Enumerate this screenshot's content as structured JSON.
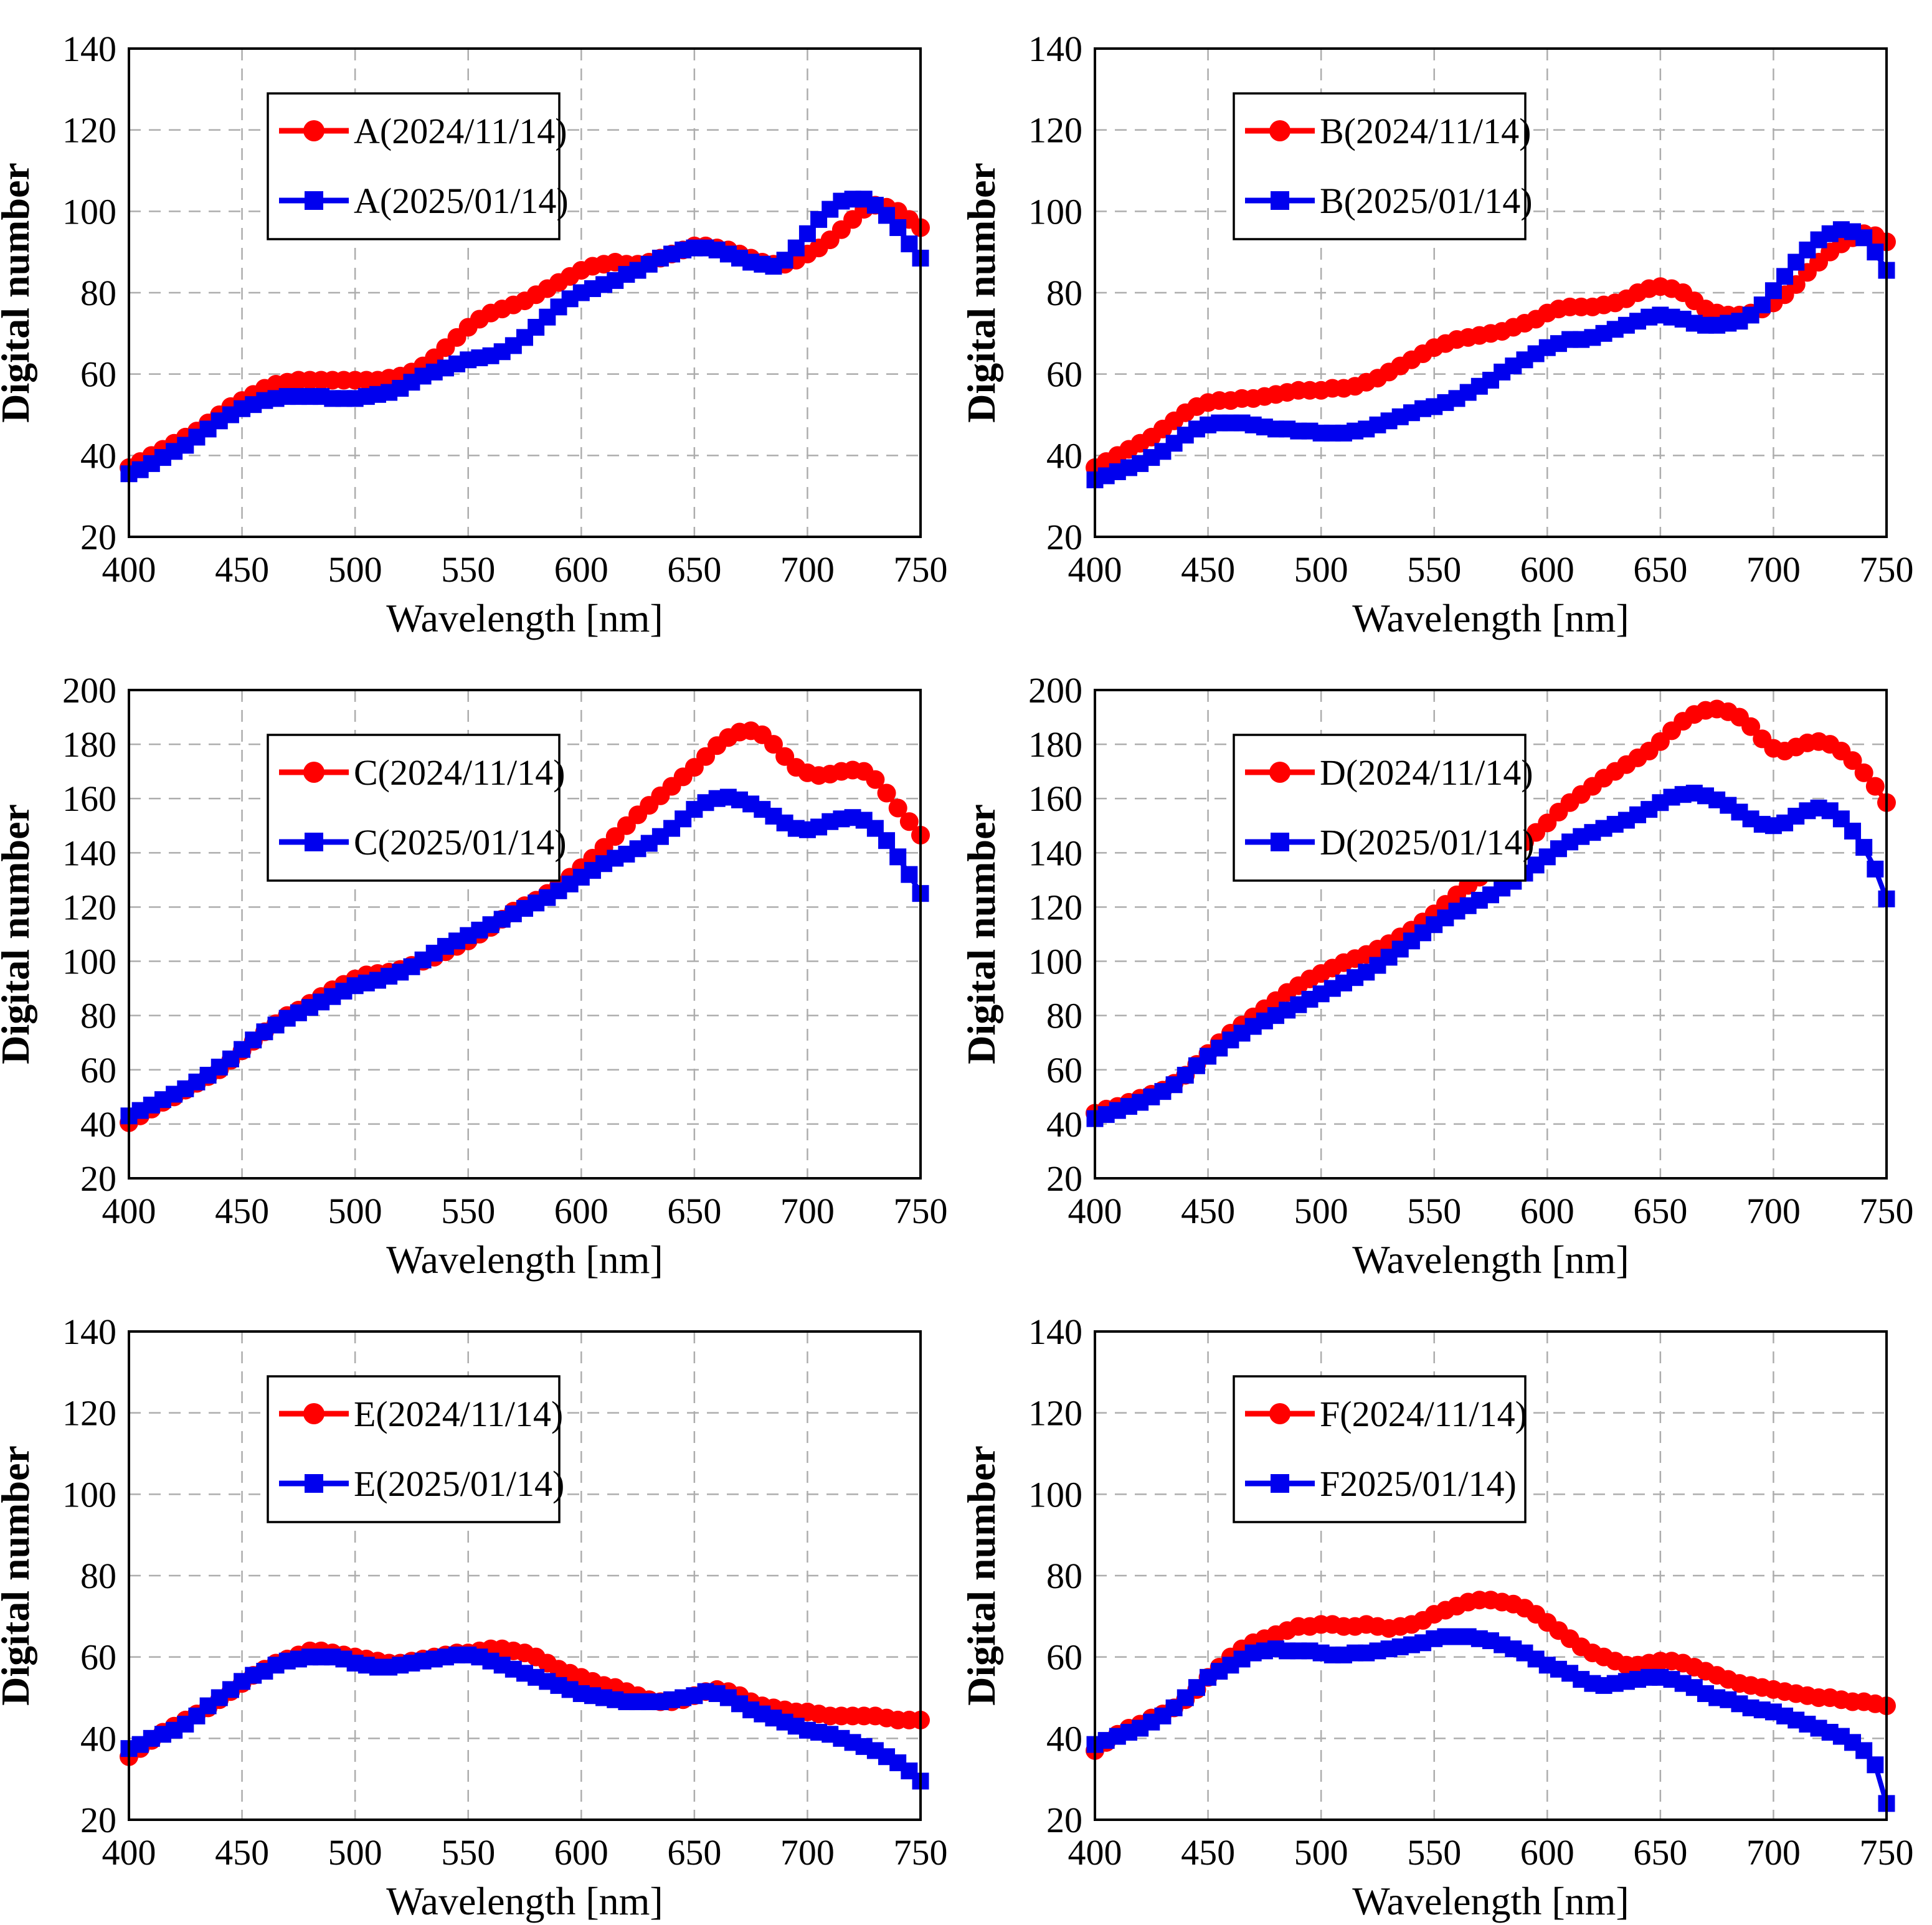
{
  "page": {
    "background": "#ffffff"
  },
  "style": {
    "series1_color": "#ff0000",
    "series2_color": "#0000ee",
    "grid_color": "#adadad",
    "axis_color": "#000000",
    "legend_bg": "#ffffff"
  },
  "chart_common": {
    "xlabel": "Wavelength [nm]",
    "ylabel": "Digital number",
    "x_ticks": [
      400,
      450,
      500,
      550,
      600,
      650,
      700,
      750
    ],
    "x_range": [
      400,
      750
    ],
    "grid": true,
    "legend_position": "upper-left-inset",
    "wavelengths_nm": [
      400,
      405,
      410,
      415,
      420,
      425,
      430,
      435,
      440,
      445,
      450,
      455,
      460,
      465,
      470,
      475,
      480,
      485,
      490,
      495,
      500,
      505,
      510,
      515,
      520,
      525,
      530,
      535,
      540,
      545,
      550,
      555,
      560,
      565,
      570,
      575,
      580,
      585,
      590,
      595,
      600,
      605,
      610,
      615,
      620,
      625,
      630,
      635,
      640,
      645,
      650,
      655,
      660,
      665,
      670,
      675,
      680,
      685,
      690,
      695,
      700,
      705,
      710,
      715,
      720,
      725,
      730,
      735,
      740,
      745,
      750
    ]
  },
  "chart_data": [
    {
      "id": "A",
      "type": "line",
      "ylim": [
        20,
        140
      ],
      "y_ticks": [
        20,
        40,
        60,
        80,
        100,
        120,
        140
      ],
      "series": [
        {
          "name": "A(2024/11/14)",
          "marker": "circle",
          "color": "#ff0000",
          "values": [
            37,
            38.5,
            40,
            41.5,
            43,
            44.5,
            46,
            48,
            50,
            52,
            53.5,
            55,
            56.5,
            57.5,
            58,
            58.5,
            58.5,
            58.5,
            58.5,
            58.5,
            58.5,
            58.5,
            58.5,
            59,
            59.5,
            60.5,
            62,
            64,
            66.5,
            69,
            71.5,
            73.5,
            75,
            76,
            77,
            78,
            79.5,
            81,
            82.5,
            84,
            85.5,
            86.5,
            87,
            87.5,
            87,
            87,
            87.5,
            88.5,
            89.5,
            90.5,
            91.5,
            91.5,
            91,
            90.5,
            89.5,
            88.5,
            87.5,
            87,
            87,
            88,
            89.5,
            91,
            93,
            95.5,
            98,
            100.5,
            101.5,
            101,
            100,
            98,
            96
          ]
        },
        {
          "name": "A(2025/01/14)",
          "marker": "square",
          "color": "#0000ee",
          "values": [
            35.5,
            36.5,
            38,
            39.5,
            41,
            42.5,
            44.5,
            46.5,
            48.5,
            50,
            51.5,
            52.5,
            53.5,
            54,
            54.5,
            54.5,
            54.5,
            54.5,
            54,
            54,
            54,
            54.5,
            55,
            55.5,
            56.5,
            58,
            59.5,
            60.5,
            61.5,
            62.5,
            63.5,
            64,
            64.5,
            65.5,
            67,
            69,
            71.5,
            74,
            76.5,
            78.5,
            80,
            81,
            82,
            83,
            84.5,
            85.5,
            87,
            88.5,
            89.5,
            90.5,
            91,
            91,
            90.5,
            89.5,
            88.5,
            87.5,
            87,
            86.5,
            88,
            91,
            94.5,
            98,
            100.5,
            102.5,
            103,
            103,
            101.5,
            99,
            96,
            92,
            88.5
          ]
        }
      ]
    },
    {
      "id": "B",
      "type": "line",
      "ylim": [
        20,
        140
      ],
      "y_ticks": [
        20,
        40,
        60,
        80,
        100,
        120,
        140
      ],
      "series": [
        {
          "name": "B(2024/11/14)",
          "marker": "circle",
          "color": "#ff0000",
          "values": [
            37,
            38.5,
            40,
            41.5,
            43,
            44.5,
            46.5,
            48.5,
            50.5,
            52,
            53,
            53.5,
            53.5,
            54,
            54,
            54.5,
            55,
            55.5,
            56,
            56,
            56,
            56.5,
            56.5,
            57,
            58,
            59,
            60.5,
            62,
            63.5,
            65,
            66.5,
            67.5,
            68.5,
            69,
            69.5,
            70,
            70.5,
            71.5,
            72.5,
            73.5,
            75,
            76,
            76.5,
            76.5,
            76.5,
            77,
            77.5,
            78.5,
            80,
            81,
            81.5,
            81,
            80,
            78,
            76,
            75,
            74.5,
            74.5,
            75,
            76,
            77.5,
            79.5,
            82,
            85,
            87.5,
            90,
            92,
            93.5,
            94.5,
            94,
            92.5
          ]
        },
        {
          "name": "B(2025/01/14)",
          "marker": "square",
          "color": "#0000ee",
          "values": [
            34,
            35,
            36,
            37,
            38,
            39.5,
            41,
            43,
            45,
            46.5,
            47.5,
            48,
            48,
            48,
            47.5,
            47,
            46.5,
            46.5,
            46,
            46,
            45.5,
            45.5,
            45.5,
            46,
            46.5,
            47.5,
            48.5,
            49.5,
            50.5,
            51.5,
            52,
            53,
            54,
            55.5,
            57,
            58.5,
            60.5,
            62,
            63.5,
            65,
            66.5,
            67.5,
            68.5,
            68.5,
            69,
            70,
            71,
            72,
            73,
            74,
            74.5,
            74,
            73.5,
            72.5,
            72,
            72,
            72.5,
            73,
            74.5,
            77,
            80.5,
            84,
            87.5,
            90.5,
            93,
            94.5,
            95.5,
            95,
            93.5,
            90,
            85.5
          ]
        }
      ]
    },
    {
      "id": "C",
      "type": "line",
      "ylim": [
        20,
        200
      ],
      "y_ticks": [
        20,
        40,
        60,
        80,
        100,
        120,
        140,
        160,
        180,
        200
      ],
      "series": [
        {
          "name": "C(2024/11/14)",
          "marker": "circle",
          "color": "#ff0000",
          "values": [
            40.5,
            43,
            45.5,
            48,
            50,
            52.5,
            55,
            57.5,
            60,
            63.5,
            67,
            70.5,
            74,
            77,
            80,
            82,
            84.5,
            87,
            89.5,
            91.5,
            93.5,
            95,
            95.5,
            96,
            97,
            98.5,
            100,
            101.5,
            103.5,
            105.5,
            107.5,
            110,
            112.5,
            115.5,
            118.5,
            120.5,
            122.5,
            125,
            128,
            131,
            134.5,
            138,
            142,
            146,
            150,
            154,
            157.5,
            161,
            164.5,
            168,
            171.5,
            175.5,
            179.5,
            182.5,
            184.5,
            185,
            183.5,
            180,
            175.5,
            171.5,
            169.5,
            168.5,
            169,
            170,
            170.5,
            170,
            167,
            162,
            156.5,
            151.5,
            146.5
          ]
        },
        {
          "name": "C(2025/01/14)",
          "marker": "square",
          "color": "#0000ee",
          "values": [
            43,
            45,
            47,
            49,
            51,
            53,
            55.5,
            58,
            61,
            64,
            67.5,
            71,
            74,
            76.5,
            79,
            81,
            83,
            85,
            87,
            89,
            91,
            92,
            93,
            94.5,
            96,
            98,
            100.5,
            103,
            105.5,
            107.5,
            109.5,
            111.5,
            113.5,
            115.5,
            117.5,
            119.5,
            121.5,
            123.5,
            126,
            128.5,
            131,
            133.5,
            136,
            138,
            139.5,
            141.5,
            143.5,
            146,
            149,
            152.5,
            156,
            158.5,
            160,
            160.5,
            159.5,
            158,
            156,
            153.5,
            151,
            149,
            148.5,
            149.5,
            151.5,
            152.5,
            153,
            152,
            149,
            144.5,
            138.5,
            132,
            125
          ]
        }
      ]
    },
    {
      "id": "D",
      "type": "line",
      "ylim": [
        20,
        200
      ],
      "y_ticks": [
        20,
        40,
        60,
        80,
        100,
        120,
        140,
        160,
        180,
        200
      ],
      "series": [
        {
          "name": "D(2024/11/14)",
          "marker": "circle",
          "color": "#ff0000",
          "values": [
            44,
            45.5,
            46.5,
            48,
            49.5,
            51,
            52.5,
            55,
            58,
            62,
            66,
            70,
            73.5,
            76.5,
            79.5,
            82.5,
            85.5,
            88.5,
            91,
            93.5,
            95.5,
            97.5,
            99.5,
            101,
            102.5,
            104.5,
            106.5,
            109,
            111.5,
            114.5,
            117.5,
            121,
            124.5,
            128,
            131,
            134,
            137,
            140.5,
            144,
            147.5,
            151,
            155,
            158.5,
            161.5,
            164.5,
            167.5,
            170,
            172.5,
            175,
            177.5,
            181,
            185,
            188.5,
            191,
            192.5,
            193,
            192,
            190,
            186.5,
            182,
            178.5,
            177.5,
            179,
            180.5,
            181,
            180,
            177.5,
            174,
            169.5,
            164.5,
            158.5
          ]
        },
        {
          "name": "D(2025/01/14)",
          "marker": "square",
          "color": "#0000ee",
          "values": [
            42,
            43.5,
            45,
            46.5,
            48,
            50,
            52,
            54.5,
            58,
            61.5,
            65,
            68,
            71,
            73.5,
            76,
            78,
            80,
            82,
            84,
            86,
            88,
            90,
            92,
            94,
            96,
            98.5,
            101.5,
            104.5,
            107.5,
            110.5,
            113.5,
            116,
            118.5,
            120.5,
            122.5,
            124.5,
            127,
            129.5,
            132.5,
            135.5,
            138.5,
            141.5,
            144,
            146,
            147.5,
            149,
            150.5,
            152,
            154,
            156,
            158.5,
            160.5,
            161.5,
            162,
            161,
            159.5,
            157.5,
            155,
            152.5,
            150.5,
            150,
            151,
            153.5,
            155.5,
            156.5,
            155.5,
            152.5,
            148,
            142,
            134,
            123
          ]
        }
      ]
    },
    {
      "id": "E",
      "type": "line",
      "ylim": [
        20,
        140
      ],
      "y_ticks": [
        20,
        40,
        60,
        80,
        100,
        120,
        140
      ],
      "series": [
        {
          "name": "E(2024/11/14)",
          "marker": "circle",
          "color": "#ff0000",
          "values": [
            35.5,
            37.5,
            39.5,
            41.5,
            43,
            44.5,
            46,
            47.5,
            49.5,
            51.5,
            53.5,
            55.5,
            57,
            58.5,
            59.5,
            60.5,
            61.5,
            61.5,
            61,
            60.5,
            60,
            59.5,
            59,
            58.5,
            58.5,
            59,
            59.5,
            60,
            60.5,
            61,
            61,
            61.5,
            62,
            62,
            61.5,
            61,
            60,
            58.5,
            57,
            56,
            55,
            54,
            53,
            52.5,
            51.5,
            50.5,
            49.5,
            49,
            49,
            49.5,
            50.5,
            51.5,
            52,
            51.5,
            50.5,
            49,
            48,
            47.5,
            47,
            46.5,
            46.5,
            46,
            45.5,
            45.5,
            45.5,
            45.5,
            45.5,
            45,
            44.5,
            44.5,
            44.5
          ]
        },
        {
          "name": "E(2025/01/14)",
          "marker": "square",
          "color": "#0000ee",
          "values": [
            37.5,
            38.5,
            40,
            41,
            42,
            43.5,
            45.5,
            48,
            50,
            52,
            54,
            55.5,
            56.5,
            58,
            59,
            59.5,
            60,
            60,
            60,
            59.5,
            58.5,
            58,
            57.5,
            57.5,
            58,
            58.5,
            59,
            59.5,
            60,
            60.5,
            60.5,
            60,
            59,
            58,
            57,
            56,
            55,
            54,
            53,
            52,
            51,
            50.5,
            50,
            49.5,
            49,
            49,
            49,
            49,
            49.5,
            50,
            50.5,
            51.5,
            51,
            50,
            48.5,
            47,
            46,
            45,
            44,
            43,
            42,
            41.5,
            41,
            40,
            39,
            38,
            37,
            35.5,
            34,
            32,
            29.5
          ]
        }
      ]
    },
    {
      "id": "F",
      "type": "line",
      "ylim": [
        20,
        140
      ],
      "y_ticks": [
        20,
        40,
        60,
        80,
        100,
        120,
        140
      ],
      "series": [
        {
          "name": "F(2024/11/14)",
          "marker": "circle",
          "color": "#ff0000",
          "values": [
            37,
            39,
            41,
            42.5,
            43.5,
            45,
            46,
            47.5,
            49.5,
            52,
            55,
            57.5,
            60,
            62,
            63.5,
            64.5,
            65.5,
            66.5,
            67.5,
            67.5,
            68,
            68,
            67.5,
            67.5,
            68,
            67.5,
            67,
            67.5,
            68,
            69,
            70.5,
            71.5,
            72.5,
            73.5,
            74,
            74,
            73.5,
            73,
            72,
            70.5,
            68.5,
            66.5,
            64.5,
            62.5,
            61,
            60,
            59,
            58,
            58,
            58.5,
            59,
            59,
            58.5,
            57.5,
            56.5,
            55.5,
            54.5,
            53.5,
            53,
            52.5,
            52,
            51.5,
            51,
            50.5,
            50,
            50,
            49.5,
            49,
            49,
            48.5,
            48
          ]
        },
        {
          "name": "F2025/01/14)",
          "marker": "square",
          "color": "#0000ee",
          "values": [
            38.5,
            39.5,
            40.5,
            41.5,
            42.5,
            44,
            45.5,
            47.5,
            50,
            52.5,
            55,
            56.5,
            58,
            59.5,
            61,
            61.5,
            62,
            61.5,
            61.5,
            61.5,
            61,
            60.5,
            60.5,
            61,
            61,
            61.5,
            62,
            62.5,
            63,
            63.5,
            64.5,
            65,
            65,
            65,
            64.5,
            64,
            63,
            62,
            61,
            59.5,
            58,
            57,
            56,
            54.5,
            53.5,
            53,
            53.5,
            54,
            54.5,
            55,
            55,
            54.5,
            53.5,
            52.5,
            51,
            50,
            49.5,
            48.5,
            47.5,
            47,
            46.5,
            45.5,
            44.5,
            43.5,
            42.5,
            41.5,
            40.5,
            39,
            37,
            33.5,
            24
          ]
        }
      ]
    }
  ]
}
